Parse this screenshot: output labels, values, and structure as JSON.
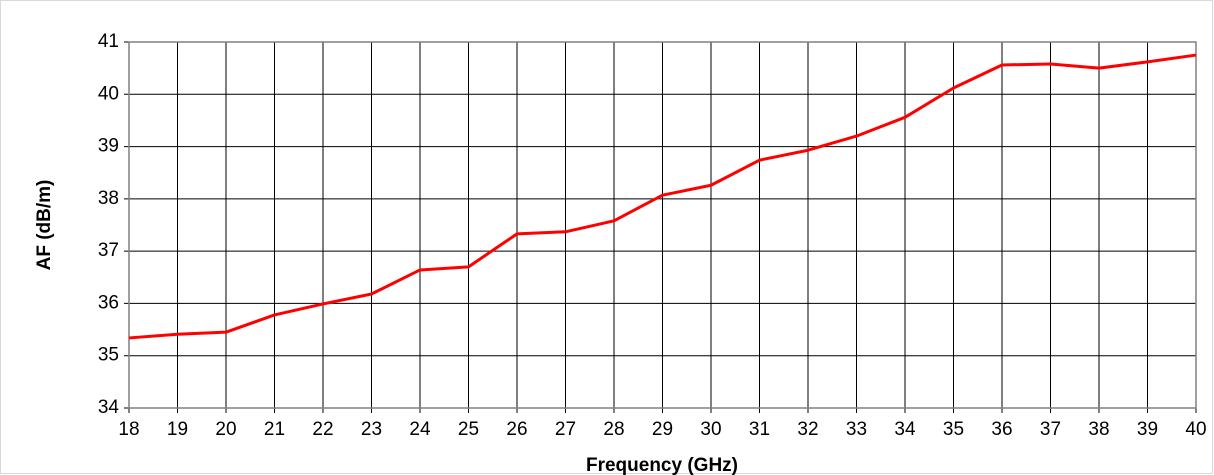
{
  "chart_data": {
    "type": "line",
    "xlabel": "Frequency (GHz)",
    "ylabel": "AF (dB/m)",
    "x": [
      18,
      19,
      20,
      21,
      22,
      23,
      24,
      25,
      26,
      27,
      28,
      29,
      30,
      31,
      32,
      33,
      34,
      35,
      36,
      37,
      38,
      39,
      40
    ],
    "values": [
      35.34,
      35.41,
      35.45,
      35.78,
      35.99,
      36.18,
      36.64,
      36.7,
      37.33,
      37.37,
      37.58,
      38.07,
      38.26,
      38.74,
      38.93,
      39.2,
      39.56,
      40.12,
      40.56,
      40.58,
      40.5,
      40.62,
      40.75
    ],
    "color": "#ff0000",
    "xlim": [
      18,
      40
    ],
    "xticks": [
      18,
      19,
      20,
      21,
      22,
      23,
      24,
      25,
      26,
      27,
      28,
      29,
      30,
      31,
      32,
      33,
      34,
      35,
      36,
      37,
      38,
      39,
      40
    ],
    "ylim": [
      34,
      41
    ],
    "yticks": [
      34,
      35,
      36,
      37,
      38,
      39,
      40,
      41
    ],
    "grid": true
  }
}
